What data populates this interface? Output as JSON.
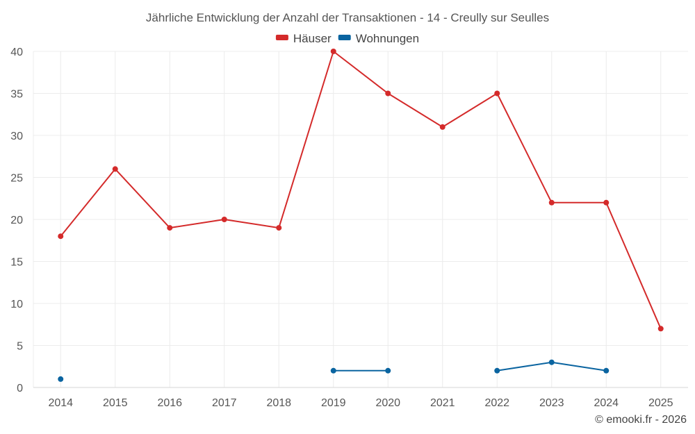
{
  "chart_data": {
    "type": "line",
    "title": "Jährliche Entwicklung der Anzahl der Transaktionen - 14 - Creully sur Seulles",
    "xlabel": "",
    "ylabel": "",
    "categories": [
      "2014",
      "2015",
      "2016",
      "2017",
      "2018",
      "2019",
      "2020",
      "2021",
      "2022",
      "2023",
      "2024",
      "2025"
    ],
    "ylim": [
      0,
      40
    ],
    "yticks": [
      0,
      5,
      10,
      15,
      20,
      25,
      30,
      35,
      40
    ],
    "grid": true,
    "legend_position": "top-center",
    "series": [
      {
        "name": "Häuser",
        "color": "#d42a2a",
        "values": [
          18,
          26,
          19,
          20,
          19,
          40,
          35,
          31,
          35,
          22,
          22,
          7
        ]
      },
      {
        "name": "Wohnungen",
        "color": "#0a64a0",
        "values": [
          1,
          null,
          null,
          null,
          null,
          2,
          2,
          null,
          2,
          3,
          2,
          null
        ]
      }
    ]
  },
  "credit": "© emooki.fr - 2026"
}
